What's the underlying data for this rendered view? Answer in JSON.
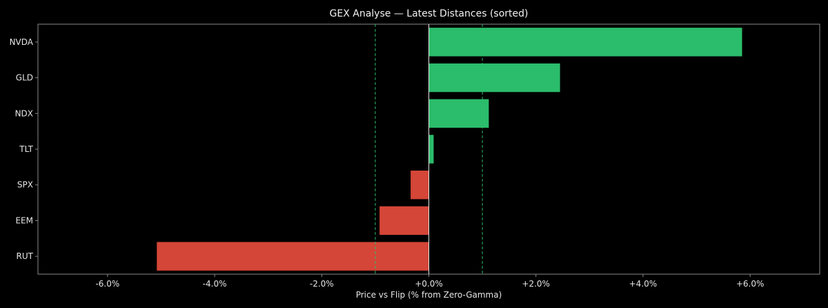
{
  "chart_data": {
    "type": "bar",
    "orientation": "horizontal",
    "title": "GEX Analyse — Latest Distances (sorted)",
    "xlabel": "Price vs Flip (% from Zero-Gamma)",
    "ylabel": "",
    "categories": [
      "NVDA",
      "GLD",
      "NDX",
      "TLT",
      "SPX",
      "EEM",
      "RUT"
    ],
    "values": [
      5.85,
      2.45,
      1.12,
      0.09,
      -0.34,
      -0.92,
      -5.08
    ],
    "xlim": [
      -7.3,
      7.3
    ],
    "xticks": [
      -6,
      -4,
      -2,
      0,
      2,
      4,
      6
    ],
    "xtick_labels": [
      "-6.0%",
      "-4.0%",
      "-2.0%",
      "+0.0%",
      "+2.0%",
      "+4.0%",
      "+6.0%"
    ],
    "reference_lines": [
      -1.0,
      1.0
    ],
    "zero_line": 0,
    "grid": false,
    "legend": "none",
    "colors": {
      "background": "#000000",
      "positive": "#2bbd6b",
      "negative": "#d44637",
      "reference_line": "#2bbd6b",
      "zero_line": "#e6e6e6",
      "axes": "#8a8a8a",
      "text": "#e6e6e6"
    }
  }
}
